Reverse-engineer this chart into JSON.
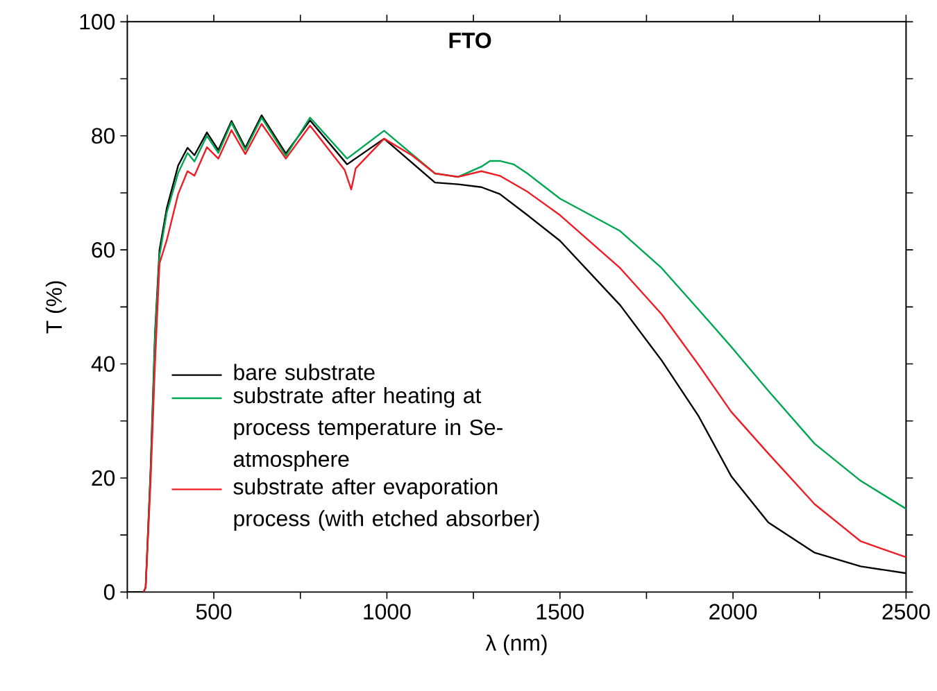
{
  "chart_data": {
    "type": "line",
    "title": "FTO",
    "xlabel": "λ (nm)",
    "ylabel": "T (%)",
    "xlim": [
      250,
      2500
    ],
    "ylim": [
      0,
      100
    ],
    "xticks": [
      {
        "value": 250,
        "label": null
      },
      500,
      {
        "value": 750,
        "label": null
      },
      1000,
      {
        "value": 1250,
        "label": null
      },
      1500,
      {
        "value": 1750,
        "label": null
      },
      2000,
      {
        "value": 2250,
        "label": null
      },
      2500
    ],
    "yticks": [
      0,
      {
        "value": 10,
        "label": null
      },
      20,
      {
        "value": 30,
        "label": null
      },
      40,
      {
        "value": 50,
        "label": null
      },
      60,
      {
        "value": 70,
        "label": null
      },
      80,
      {
        "value": 90,
        "label": null
      },
      100
    ],
    "legend": "bottom left",
    "grid": false,
    "marker": "none",
    "line_style": "solid",
    "series": [
      {
        "name": "bare substrate",
        "color": "#000000",
        "x": [
          250,
          297,
          303,
          317,
          330,
          343,
          364,
          397,
          424,
          444,
          480,
          513,
          551,
          591,
          638,
          708,
          778,
          885,
          992,
          1139,
          1206,
          1273,
          1326,
          1406,
          1500,
          1674,
          1794,
          1901,
          1995,
          2102,
          2236,
          2369,
          2500
        ],
        "values": [
          0,
          0,
          0.8,
          21.1,
          45.4,
          60,
          67.3,
          74.8,
          77.9,
          76.6,
          80.6,
          77.5,
          82.6,
          77.9,
          83.6,
          76.9,
          82.7,
          75,
          79.5,
          71.8,
          71.5,
          71,
          69.8,
          66.1,
          61.6,
          50.3,
          40.6,
          30.8,
          20.3,
          12.2,
          6.9,
          4.5,
          3.3
        ]
      },
      {
        "name": "substrate after heating at process temperature in Se-atmosphere",
        "color": "#00a651",
        "x": [
          303,
          317,
          330,
          343,
          364,
          397,
          424,
          444,
          480,
          513,
          551,
          591,
          638,
          708,
          778,
          885,
          992,
          1139,
          1206,
          1273,
          1298,
          1326,
          1366,
          1406,
          1500,
          1674,
          1794,
          1901,
          1995,
          2102,
          2236,
          2369,
          2500
        ],
        "values": [
          0.8,
          20.5,
          44.5,
          59,
          66.5,
          73.5,
          77,
          75.5,
          80,
          77,
          82.3,
          77.5,
          83.2,
          76.5,
          83.2,
          76,
          80.9,
          73.4,
          72.8,
          74.6,
          75.6,
          75.6,
          75,
          73.4,
          69,
          63.3,
          56.8,
          49.5,
          43,
          35.3,
          26,
          19.5,
          14.6
        ]
      },
      {
        "name": "substrate after evaporation process (with etched absorber)",
        "color": "#ee1c25",
        "x": [
          297,
          303,
          317,
          330,
          343,
          364,
          397,
          424,
          444,
          480,
          513,
          551,
          591,
          638,
          708,
          778,
          878,
          897,
          910,
          992,
          1072,
          1139,
          1206,
          1273,
          1326,
          1406,
          1500,
          1674,
          1794,
          1901,
          1995,
          2102,
          2236,
          2369,
          2500
        ],
        "values": [
          0,
          0.8,
          19,
          40,
          57.6,
          61.7,
          69.8,
          73.8,
          73,
          78,
          76,
          81,
          76.8,
          82.1,
          76,
          81.8,
          74,
          70.6,
          74.3,
          79.5,
          76.6,
          73.4,
          72.8,
          73.8,
          73,
          70.2,
          66.1,
          56.8,
          48.7,
          39.8,
          31.6,
          24.3,
          15.4,
          8.9,
          6.1
        ]
      }
    ]
  }
}
